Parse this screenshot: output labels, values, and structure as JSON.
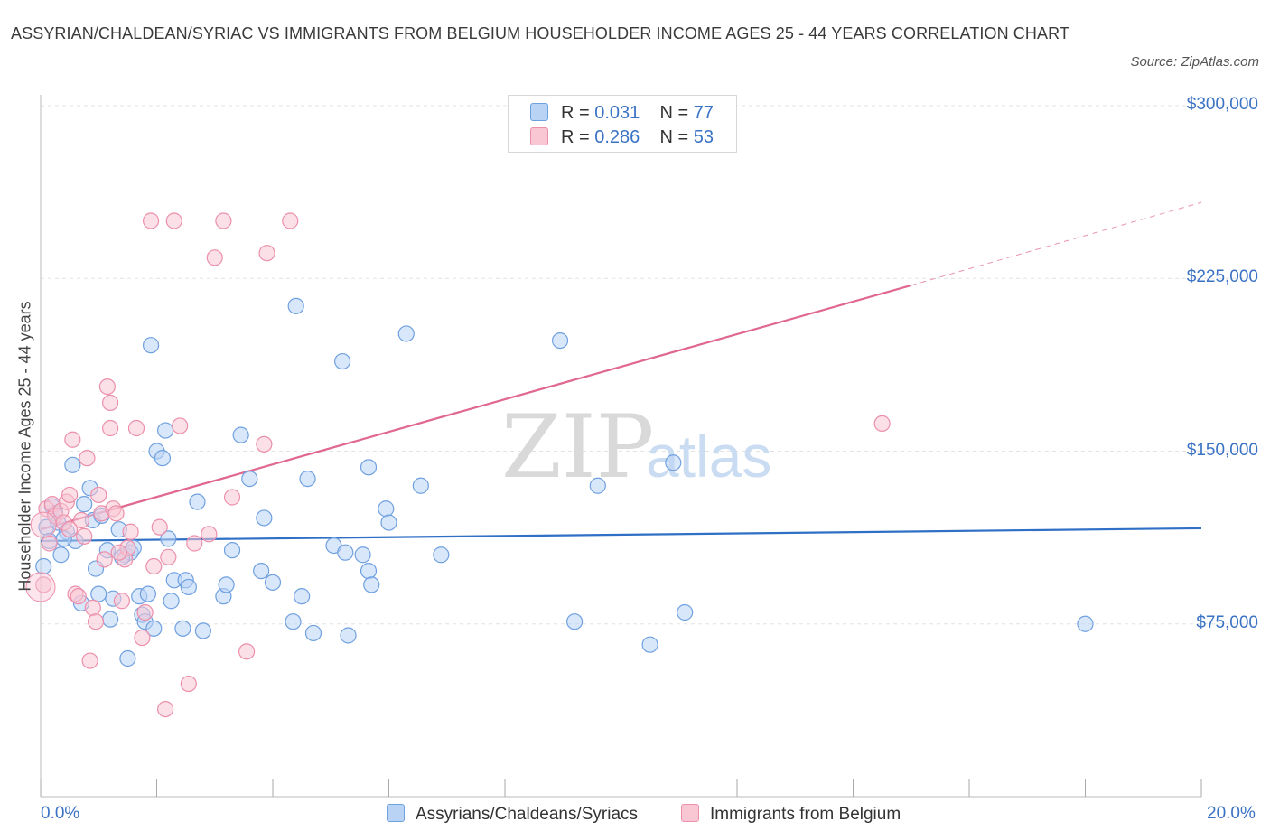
{
  "title": "ASSYRIAN/CHALDEAN/SYRIAC VS IMMIGRANTS FROM BELGIUM HOUSEHOLDER INCOME AGES 25 - 44 YEARS CORRELATION CHART",
  "source": "Source: ZipAtlas.com",
  "watermark": {
    "zip": "ZIP",
    "atlas": "atlas"
  },
  "legend": {
    "r_label": "R =",
    "n_label": "N =",
    "rows": [
      {
        "r": "0.031",
        "n": "77",
        "fill": "#b9d3f5",
        "stroke": "#6fa0e0"
      },
      {
        "r": "0.286",
        "n": "53",
        "fill": "#f9c6d4",
        "stroke": "#ec8fab"
      }
    ]
  },
  "bottom_legend": [
    "Assyrians/Chaldeans/Syriacs",
    "Immigrants from Belgium"
  ],
  "chart_data": {
    "type": "scatter",
    "title": "ASSYRIAN/CHALDEAN/SYRIAC VS IMMIGRANTS FROM BELGIUM HOUSEHOLDER INCOME AGES 25 - 44 YEARS CORRELATION CHART",
    "xlabel": "",
    "ylabel": "Householder Income Ages 25 - 44 years",
    "xlim": [
      0,
      20
    ],
    "ylim": [
      0,
      300000
    ],
    "x_tick_labels": [
      "0.0%",
      "20.0%"
    ],
    "y_ticks": [
      75000,
      150000,
      225000,
      300000
    ],
    "y_tick_labels": [
      "$75,000",
      "$150,000",
      "$225,000",
      "$300,000"
    ],
    "grid": "horizontal dashed",
    "series": [
      {
        "name": "Assyrians/Chaldeans/Syriacs",
        "color": "#6fa0e0",
        "fill": "#b9d3f5",
        "line_color": "#2f6fc6",
        "trend": {
          "x": [
            0,
            20
          ],
          "y": [
            111000,
            116500
          ]
        },
        "points": [
          [
            0.05,
            100000
          ],
          [
            0.1,
            117000
          ],
          [
            0.15,
            111000
          ],
          [
            0.2,
            126000
          ],
          [
            0.25,
            123000
          ],
          [
            0.3,
            119000
          ],
          [
            0.35,
            105000
          ],
          [
            0.45,
            115000
          ],
          [
            0.55,
            144000
          ],
          [
            0.6,
            111000
          ],
          [
            0.7,
            84000
          ],
          [
            0.75,
            127000
          ],
          [
            0.85,
            134000
          ],
          [
            0.9,
            120000
          ],
          [
            0.95,
            99000
          ],
          [
            1.0,
            88000
          ],
          [
            1.05,
            122000
          ],
          [
            1.15,
            107000
          ],
          [
            1.2,
            77000
          ],
          [
            1.25,
            86000
          ],
          [
            1.35,
            116000
          ],
          [
            1.45,
            105000
          ],
          [
            1.5,
            60000
          ],
          [
            1.55,
            106000
          ],
          [
            1.6,
            108000
          ],
          [
            1.7,
            87000
          ],
          [
            1.75,
            79000
          ],
          [
            1.8,
            76000
          ],
          [
            1.85,
            88000
          ],
          [
            1.9,
            196000
          ],
          [
            1.95,
            73000
          ],
          [
            2.0,
            150000
          ],
          [
            2.1,
            147000
          ],
          [
            2.15,
            159000
          ],
          [
            2.2,
            112000
          ],
          [
            2.25,
            85000
          ],
          [
            2.3,
            94000
          ],
          [
            2.45,
            73000
          ],
          [
            2.5,
            94000
          ],
          [
            2.55,
            91000
          ],
          [
            2.7,
            128000
          ],
          [
            2.8,
            72000
          ],
          [
            3.15,
            87000
          ],
          [
            3.2,
            92000
          ],
          [
            3.3,
            107000
          ],
          [
            3.45,
            157000
          ],
          [
            3.6,
            138000
          ],
          [
            3.8,
            98000
          ],
          [
            3.85,
            121000
          ],
          [
            4.0,
            93000
          ],
          [
            4.35,
            76000
          ],
          [
            4.4,
            213000
          ],
          [
            4.5,
            87000
          ],
          [
            4.6,
            138000
          ],
          [
            4.7,
            71000
          ],
          [
            5.05,
            109000
          ],
          [
            5.2,
            189000
          ],
          [
            5.25,
            106000
          ],
          [
            5.3,
            70000
          ],
          [
            5.55,
            105000
          ],
          [
            5.65,
            98000
          ],
          [
            5.7,
            92000
          ],
          [
            5.65,
            143000
          ],
          [
            5.95,
            125000
          ],
          [
            6.0,
            119000
          ],
          [
            6.3,
            201000
          ],
          [
            6.55,
            135000
          ],
          [
            6.9,
            105000
          ],
          [
            8.95,
            198000
          ],
          [
            9.2,
            76000
          ],
          [
            9.6,
            135000
          ],
          [
            10.5,
            66000
          ],
          [
            10.9,
            145000
          ],
          [
            11.1,
            80000
          ],
          [
            18.0,
            75000
          ],
          [
            0.4,
            112000
          ],
          [
            1.4,
            104000
          ]
        ]
      },
      {
        "name": "Immigrants from Belgium",
        "color": "#ec8fab",
        "fill": "#f9c6d4",
        "line_color": "#e06890",
        "trend": {
          "x": [
            0,
            15
          ],
          "y": [
            116000,
            222000
          ]
        },
        "trend_extension": {
          "x": [
            15,
            20
          ],
          "y": [
            222000,
            258000
          ]
        },
        "points": [
          [
            0.05,
            92000
          ],
          [
            0.1,
            125000
          ],
          [
            0.15,
            110000
          ],
          [
            0.2,
            127000
          ],
          [
            0.25,
            122000
          ],
          [
            0.35,
            124000
          ],
          [
            0.4,
            119000
          ],
          [
            0.45,
            128000
          ],
          [
            0.5,
            131000
          ],
          [
            0.55,
            155000
          ],
          [
            0.6,
            88000
          ],
          [
            0.65,
            87000
          ],
          [
            0.7,
            120000
          ],
          [
            0.75,
            113000
          ],
          [
            0.8,
            147000
          ],
          [
            0.85,
            59000
          ],
          [
            0.9,
            82000
          ],
          [
            0.95,
            76000
          ],
          [
            1.0,
            131000
          ],
          [
            1.05,
            123000
          ],
          [
            1.1,
            103000
          ],
          [
            1.15,
            178000
          ],
          [
            1.2,
            160000
          ],
          [
            1.25,
            125000
          ],
          [
            1.3,
            123000
          ],
          [
            1.4,
            85000
          ],
          [
            1.45,
            103000
          ],
          [
            1.5,
            108000
          ],
          [
            1.55,
            115000
          ],
          [
            1.65,
            160000
          ],
          [
            1.75,
            69000
          ],
          [
            1.8,
            80000
          ],
          [
            1.9,
            250000
          ],
          [
            1.95,
            100000
          ],
          [
            2.05,
            117000
          ],
          [
            2.15,
            38000
          ],
          [
            2.2,
            104000
          ],
          [
            2.3,
            250000
          ],
          [
            2.4,
            161000
          ],
          [
            2.55,
            49000
          ],
          [
            2.65,
            110000
          ],
          [
            2.9,
            114000
          ],
          [
            3.0,
            234000
          ],
          [
            3.15,
            250000
          ],
          [
            3.3,
            130000
          ],
          [
            3.55,
            63000
          ],
          [
            3.85,
            153000
          ],
          [
            3.9,
            236000
          ],
          [
            4.3,
            250000
          ],
          [
            1.2,
            171000
          ],
          [
            0.5,
            116000
          ],
          [
            1.35,
            106000
          ],
          [
            14.5,
            162000
          ]
        ]
      }
    ]
  }
}
